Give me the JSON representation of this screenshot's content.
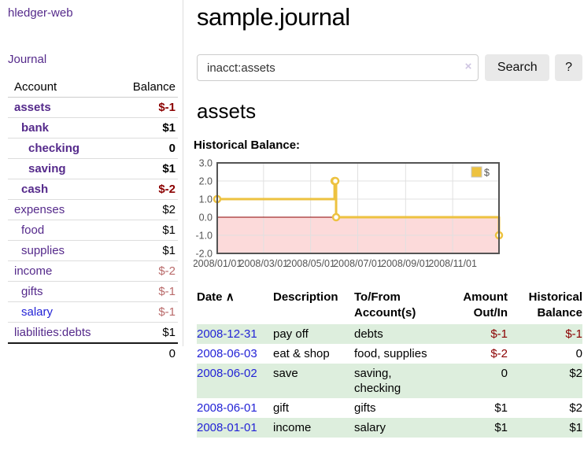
{
  "brand": "hledger-web",
  "sidebar": {
    "journal_link": "Journal",
    "table": {
      "account_header": "Account",
      "balance_header": "Balance",
      "rows": [
        {
          "name": "assets",
          "indent": 0,
          "bold": true,
          "balance": "$-1",
          "negative": true,
          "blue": false
        },
        {
          "name": "bank",
          "indent": 1,
          "bold": true,
          "balance": "$1",
          "negative": false,
          "blue": false
        },
        {
          "name": "checking",
          "indent": 2,
          "bold": true,
          "balance": "0",
          "negative": false,
          "blue": false
        },
        {
          "name": "saving",
          "indent": 2,
          "bold": true,
          "balance": "$1",
          "negative": false,
          "blue": false
        },
        {
          "name": "cash",
          "indent": 1,
          "bold": true,
          "balance": "$-2",
          "negative": true,
          "blue": false
        },
        {
          "name": "expenses",
          "indent": 0,
          "bold": false,
          "balance": "$2",
          "negative": false,
          "blue": false
        },
        {
          "name": "food",
          "indent": 1,
          "bold": false,
          "balance": "$1",
          "negative": false,
          "blue": false
        },
        {
          "name": "supplies",
          "indent": 1,
          "bold": false,
          "balance": "$1",
          "negative": false,
          "blue": false
        },
        {
          "name": "income",
          "indent": 0,
          "bold": false,
          "balance": "$-2",
          "negative": true,
          "blue": false
        },
        {
          "name": "gifts",
          "indent": 1,
          "bold": false,
          "balance": "$-1",
          "negative": true,
          "blue": false
        },
        {
          "name": "salary",
          "indent": 1,
          "bold": false,
          "balance": "$-1",
          "negative": true,
          "blue": true
        },
        {
          "name": "liabilities:debts",
          "indent": 0,
          "bold": false,
          "balance": "$1",
          "negative": false,
          "blue": false
        }
      ],
      "total": "0"
    }
  },
  "header": {
    "title": "sample.journal"
  },
  "search": {
    "value": "inacct:assets",
    "clear_icon": "×",
    "button_label": "Search",
    "help_label": "?"
  },
  "account_page": {
    "heading": "assets",
    "chart_label": "Historical Balance:"
  },
  "chart_data": {
    "type": "line",
    "title": "Historical Balance",
    "steps": true,
    "series": [
      {
        "name": "$",
        "color": "#edc240",
        "points": [
          [
            "2008-01-01",
            1
          ],
          [
            "2008-06-01",
            2
          ],
          [
            "2008-06-02",
            2
          ],
          [
            "2008-06-03",
            0
          ],
          [
            "2008-12-31",
            -1
          ]
        ]
      }
    ],
    "x_ticks": [
      "2008/01/01",
      "2008/03/01",
      "2008/05/01",
      "2008/07/01",
      "2008/09/01",
      "2008/11/01"
    ],
    "y_ticks": [
      -2,
      -1,
      0,
      1,
      2,
      3
    ],
    "ylim": [
      -2,
      3
    ],
    "xlim": [
      "2008-01-01",
      "2008-12-31"
    ],
    "legend_position": "top-right",
    "grid": true,
    "negative_region_color": "#fcdada",
    "zero_line_color": "#8b0000"
  },
  "register": {
    "sort_icon": "∧",
    "columns": {
      "date": "Date",
      "description": "Description",
      "accounts": "To/From Account(s)",
      "amount": "Amount Out/In",
      "balance": "Historical Balance"
    },
    "rows": [
      {
        "date": "2008-12-31",
        "description": "pay off",
        "accounts": "debts",
        "amount": "$-1",
        "amount_negative": true,
        "balance": "$-1",
        "balance_negative": true,
        "shaded": true
      },
      {
        "date": "2008-06-03",
        "description": "eat & shop",
        "accounts": "food, supplies",
        "amount": "$-2",
        "amount_negative": true,
        "balance": "0",
        "balance_negative": false,
        "shaded": false
      },
      {
        "date": "2008-06-02",
        "description": "save",
        "accounts": "saving, checking",
        "amount": "0",
        "amount_negative": false,
        "balance": "$2",
        "balance_negative": false,
        "shaded": true
      },
      {
        "date": "2008-06-01",
        "description": "gift",
        "accounts": "gifts",
        "amount": "$1",
        "amount_negative": false,
        "balance": "$2",
        "balance_negative": false,
        "shaded": false
      },
      {
        "date": "2008-01-01",
        "description": "income",
        "accounts": "salary",
        "amount": "$1",
        "amount_negative": false,
        "balance": "$1",
        "balance_negative": false,
        "shaded": true
      }
    ]
  },
  "colors": {
    "link_purple": "#552a8b",
    "link_blue": "#2323d6",
    "negative_strong": "#8b0000",
    "negative_soft": "#b96a6a",
    "row_stripe_green": "#ddeedd",
    "series_yellow": "#edc240",
    "chart_negative_region": "#fcdada",
    "chart_zero_line": "#8b0000"
  }
}
